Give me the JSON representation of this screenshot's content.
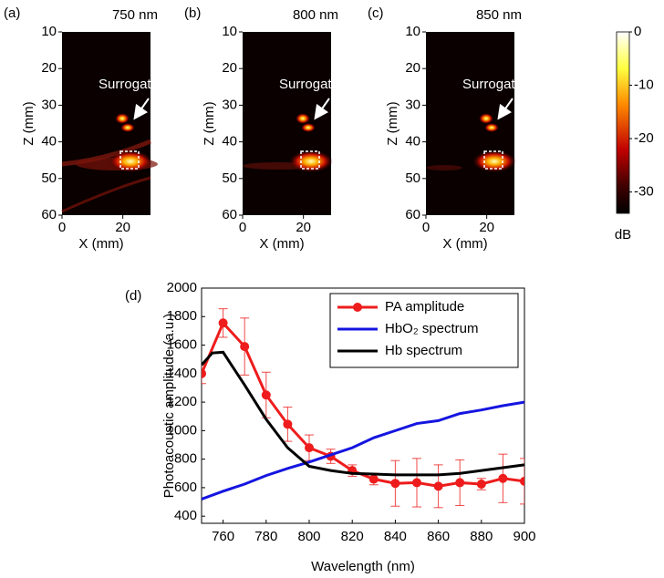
{
  "chart_data": [
    {
      "type": "image",
      "panel_label": "(a)",
      "title": "750 nm",
      "xlabel": "X (mm)",
      "ylabel": "Z (mm)",
      "xlim": [
        0,
        24
      ],
      "ylim": [
        10,
        60
      ],
      "y_inverted": true,
      "xticks": [
        0,
        20
      ],
      "yticks": [
        10,
        20,
        30,
        40,
        50,
        60
      ],
      "annotation": "Surrogate tip"
    },
    {
      "type": "image",
      "panel_label": "(b)",
      "title": "800 nm",
      "xlabel": "X (mm)",
      "ylabel": "Z (mm)",
      "xlim": [
        0,
        24
      ],
      "ylim": [
        10,
        60
      ],
      "y_inverted": true,
      "xticks": [
        0,
        20
      ],
      "yticks": [
        10,
        20,
        30,
        40,
        50,
        60
      ],
      "annotation": "Surrogate tip"
    },
    {
      "type": "image",
      "panel_label": "(c)",
      "title": "850 nm",
      "xlabel": "X (mm)",
      "ylabel": "Z (mm)",
      "xlim": [
        0,
        24
      ],
      "ylim": [
        10,
        60
      ],
      "y_inverted": true,
      "xticks": [
        0,
        20
      ],
      "yticks": [
        10,
        20,
        30,
        40,
        50,
        60
      ],
      "annotation": "Surrogate tip",
      "colorbar": {
        "lim": [
          -34,
          0
        ],
        "ticks": [
          0,
          -10,
          -20,
          -30
        ],
        "label": "dB"
      }
    },
    {
      "type": "line",
      "panel_label": "(d)",
      "xlabel": "Wavelength (nm)",
      "ylabel": "Photoacoustic amplitude (a.u.)",
      "xlim": [
        750,
        900
      ],
      "ylim": [
        350,
        2000
      ],
      "xticks": [
        760,
        780,
        800,
        820,
        840,
        860,
        880,
        900
      ],
      "yticks": [
        400,
        600,
        800,
        1000,
        1200,
        1400,
        1600,
        1800,
        2000
      ],
      "legend": "upper right",
      "series": [
        {
          "name": "PA amplitude",
          "color": "#ee1c1c",
          "markers": true,
          "x": [
            750,
            760,
            770,
            780,
            790,
            800,
            810,
            820,
            830,
            840,
            850,
            860,
            870,
            880,
            890,
            900
          ],
          "values": [
            1400,
            1755,
            1590,
            1250,
            1045,
            880,
            820,
            720,
            660,
            630,
            635,
            610,
            635,
            625,
            665,
            645
          ],
          "errors": [
            70,
            100,
            200,
            160,
            120,
            90,
            50,
            40,
            40,
            160,
            170,
            150,
            160,
            40,
            170,
            160
          ]
        },
        {
          "name": "HbO₂ spectrum",
          "color": "#1515e0",
          "x": [
            750,
            760,
            770,
            780,
            790,
            800,
            810,
            820,
            830,
            840,
            850,
            860,
            870,
            880,
            890,
            900
          ],
          "values": [
            520,
            575,
            625,
            685,
            735,
            780,
            830,
            880,
            950,
            1000,
            1050,
            1070,
            1120,
            1145,
            1175,
            1200
          ]
        },
        {
          "name": "Hb spectrum",
          "color": "#000000",
          "x": [
            750,
            755,
            760,
            770,
            780,
            790,
            800,
            810,
            820,
            830,
            840,
            850,
            860,
            870,
            880,
            890,
            900
          ],
          "values": [
            1460,
            1545,
            1550,
            1320,
            1080,
            880,
            750,
            720,
            700,
            695,
            690,
            690,
            690,
            700,
            720,
            740,
            760
          ]
        }
      ]
    }
  ]
}
